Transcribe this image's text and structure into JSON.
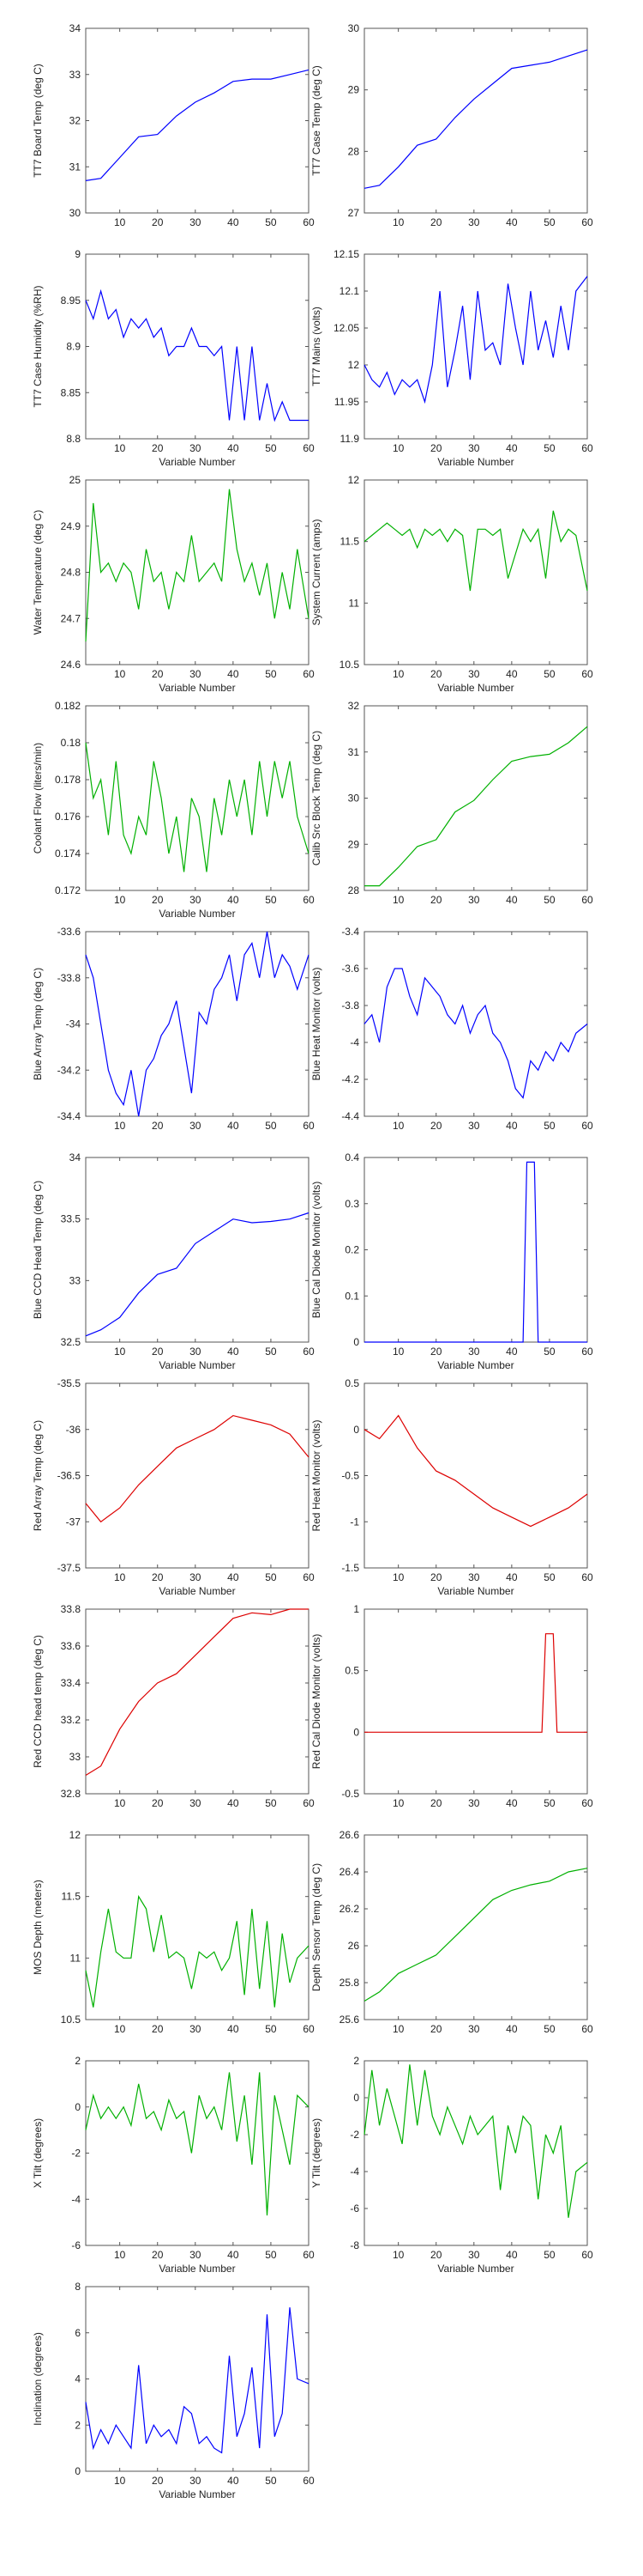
{
  "chart_data": [
    {
      "type": "line",
      "ylabel": "TT7 Board Temp (deg C)",
      "xlabel": "",
      "ylim": [
        30,
        34
      ],
      "yticks": [
        30,
        31,
        32,
        33,
        34
      ],
      "color": "#0000ff",
      "x": [
        1,
        5,
        10,
        15,
        20,
        25,
        30,
        35,
        40,
        45,
        50,
        55,
        60
      ],
      "values": [
        30.7,
        30.75,
        31.2,
        31.65,
        31.7,
        32.1,
        32.4,
        32.6,
        32.85,
        32.9,
        32.9,
        33.0,
        33.1
      ]
    },
    {
      "type": "line",
      "ylabel": "TT7 Case Temp (deg C)",
      "xlabel": "",
      "ylim": [
        27,
        30
      ],
      "yticks": [
        27,
        28,
        29,
        30
      ],
      "color": "#0000ff",
      "x": [
        1,
        5,
        10,
        15,
        20,
        25,
        30,
        35,
        40,
        45,
        50,
        55,
        60
      ],
      "values": [
        27.4,
        27.45,
        27.75,
        28.1,
        28.2,
        28.55,
        28.85,
        29.1,
        29.35,
        29.4,
        29.45,
        29.55,
        29.65
      ]
    },
    {
      "type": "line",
      "ylabel": "TT7 Case Humidity (%RH)",
      "xlabel": "Variable Number",
      "ylim": [
        8.8,
        9.0
      ],
      "yticks": [
        8.8,
        8.85,
        8.9,
        8.95,
        9.0
      ],
      "color": "#0000ff",
      "x": [
        1,
        3,
        5,
        7,
        9,
        11,
        13,
        15,
        17,
        19,
        21,
        23,
        25,
        27,
        29,
        31,
        33,
        35,
        37,
        39,
        41,
        43,
        45,
        47,
        49,
        51,
        53,
        55,
        57,
        60
      ],
      "values": [
        8.95,
        8.93,
        8.96,
        8.93,
        8.94,
        8.91,
        8.93,
        8.92,
        8.93,
        8.91,
        8.92,
        8.89,
        8.9,
        8.9,
        8.92,
        8.9,
        8.9,
        8.89,
        8.9,
        8.82,
        8.9,
        8.82,
        8.9,
        8.82,
        8.86,
        8.82,
        8.84,
        8.82,
        8.82,
        8.82
      ]
    },
    {
      "type": "line",
      "ylabel": "TT7 Mains (volts)",
      "xlabel": "Variable Number",
      "ylim": [
        11.9,
        12.15
      ],
      "yticks": [
        11.9,
        11.95,
        12.0,
        12.05,
        12.1,
        12.15
      ],
      "color": "#0000ff",
      "x": [
        1,
        3,
        5,
        7,
        9,
        11,
        13,
        15,
        17,
        19,
        21,
        23,
        25,
        27,
        29,
        31,
        33,
        35,
        37,
        39,
        41,
        43,
        45,
        47,
        49,
        51,
        53,
        55,
        57,
        60
      ],
      "values": [
        12.0,
        11.98,
        11.97,
        11.99,
        11.96,
        11.98,
        11.97,
        11.98,
        11.95,
        12.0,
        12.1,
        11.97,
        12.02,
        12.08,
        11.98,
        12.1,
        12.02,
        12.03,
        12.0,
        12.11,
        12.05,
        12.0,
        12.1,
        12.02,
        12.06,
        12.01,
        12.08,
        12.02,
        12.1,
        12.12
      ]
    },
    {
      "type": "line",
      "ylabel": "Water Temperature (deg C)",
      "xlabel": "Variable Number",
      "ylim": [
        24.6,
        25.0
      ],
      "yticks": [
        24.6,
        24.7,
        24.8,
        24.9,
        25.0
      ],
      "color": "#00b000",
      "x": [
        1,
        3,
        5,
        7,
        9,
        11,
        13,
        15,
        17,
        19,
        21,
        23,
        25,
        27,
        29,
        31,
        33,
        35,
        37,
        39,
        41,
        43,
        45,
        47,
        49,
        51,
        53,
        55,
        57,
        60
      ],
      "values": [
        24.65,
        24.95,
        24.8,
        24.82,
        24.78,
        24.82,
        24.8,
        24.72,
        24.85,
        24.78,
        24.8,
        24.72,
        24.8,
        24.78,
        24.88,
        24.78,
        24.8,
        24.82,
        24.78,
        24.98,
        24.85,
        24.78,
        24.82,
        24.75,
        24.82,
        24.7,
        24.8,
        24.72,
        24.85,
        24.7
      ]
    },
    {
      "type": "line",
      "ylabel": "System Current (amps)",
      "xlabel": "Variable Number",
      "ylim": [
        10.5,
        12
      ],
      "yticks": [
        10.5,
        11,
        11.5,
        12
      ],
      "color": "#00b000",
      "x": [
        1,
        3,
        5,
        7,
        9,
        11,
        13,
        15,
        17,
        19,
        21,
        23,
        25,
        27,
        29,
        31,
        33,
        35,
        37,
        39,
        41,
        43,
        45,
        47,
        49,
        51,
        53,
        55,
        57,
        60
      ],
      "values": [
        11.5,
        11.55,
        11.6,
        11.65,
        11.6,
        11.55,
        11.6,
        11.45,
        11.6,
        11.55,
        11.6,
        11.5,
        11.6,
        11.55,
        11.1,
        11.6,
        11.6,
        11.55,
        11.6,
        11.2,
        11.4,
        11.6,
        11.5,
        11.6,
        11.2,
        11.75,
        11.5,
        11.6,
        11.55,
        11.1
      ]
    },
    {
      "type": "line",
      "ylabel": "Coolant Flow (liters/min)",
      "xlabel": "Variable Number",
      "ylim": [
        0.172,
        0.182
      ],
      "yticks": [
        0.172,
        0.174,
        0.176,
        0.178,
        0.18,
        0.182
      ],
      "color": "#00b000",
      "x": [
        1,
        3,
        5,
        7,
        9,
        11,
        13,
        15,
        17,
        19,
        21,
        23,
        25,
        27,
        29,
        31,
        33,
        35,
        37,
        39,
        41,
        43,
        45,
        47,
        49,
        51,
        53,
        55,
        57,
        60
      ],
      "values": [
        0.18,
        0.177,
        0.178,
        0.175,
        0.179,
        0.175,
        0.174,
        0.176,
        0.175,
        0.179,
        0.177,
        0.174,
        0.176,
        0.173,
        0.177,
        0.176,
        0.173,
        0.177,
        0.175,
        0.178,
        0.176,
        0.178,
        0.175,
        0.179,
        0.176,
        0.179,
        0.177,
        0.179,
        0.176,
        0.174
      ]
    },
    {
      "type": "line",
      "ylabel": "Calib Src Block Temp (deg C)",
      "xlabel": "",
      "ylim": [
        28,
        32
      ],
      "yticks": [
        28,
        29,
        30,
        31,
        32
      ],
      "color": "#00b000",
      "x": [
        1,
        5,
        10,
        15,
        20,
        25,
        30,
        35,
        40,
        45,
        50,
        55,
        60
      ],
      "values": [
        28.1,
        28.1,
        28.5,
        28.95,
        29.1,
        29.7,
        29.95,
        30.4,
        30.8,
        30.9,
        30.95,
        31.2,
        31.55
      ]
    },
    {
      "type": "line",
      "ylabel": "Blue Array Temp (deg C)",
      "xlabel": "",
      "ylim": [
        -34.4,
        -33.6
      ],
      "yticks": [
        -34.4,
        -34.2,
        -34.0,
        -33.8,
        -33.6
      ],
      "color": "#0000ff",
      "x": [
        1,
        3,
        5,
        7,
        9,
        11,
        13,
        15,
        17,
        19,
        21,
        23,
        25,
        27,
        29,
        31,
        33,
        35,
        37,
        39,
        41,
        43,
        45,
        47,
        49,
        51,
        53,
        55,
        57,
        60
      ],
      "values": [
        -33.7,
        -33.8,
        -34.0,
        -34.2,
        -34.3,
        -34.35,
        -34.2,
        -34.4,
        -34.2,
        -34.15,
        -34.05,
        -34.0,
        -33.9,
        -34.1,
        -34.3,
        -33.95,
        -34.0,
        -33.85,
        -33.8,
        -33.7,
        -33.9,
        -33.7,
        -33.65,
        -33.8,
        -33.6,
        -33.8,
        -33.7,
        -33.75,
        -33.85,
        -33.7
      ]
    },
    {
      "type": "line",
      "ylabel": "Blue Heat Monitor (volts)",
      "xlabel": "",
      "ylim": [
        -4.4,
        -3.4
      ],
      "yticks": [
        -4.4,
        -4.2,
        -4.0,
        -3.8,
        -3.6,
        -3.4
      ],
      "color": "#0000ff",
      "x": [
        1,
        3,
        5,
        7,
        9,
        11,
        13,
        15,
        17,
        19,
        21,
        23,
        25,
        27,
        29,
        31,
        33,
        35,
        37,
        39,
        41,
        43,
        45,
        47,
        49,
        51,
        53,
        55,
        57,
        60
      ],
      "values": [
        -3.9,
        -3.85,
        -4.0,
        -3.7,
        -3.6,
        -3.6,
        -3.75,
        -3.85,
        -3.65,
        -3.7,
        -3.75,
        -3.85,
        -3.9,
        -3.8,
        -3.95,
        -3.85,
        -3.8,
        -3.95,
        -4.0,
        -4.1,
        -4.25,
        -4.3,
        -4.1,
        -4.15,
        -4.05,
        -4.1,
        -4.0,
        -4.05,
        -3.95,
        -3.9
      ]
    },
    {
      "type": "line",
      "ylabel": "Blue CCD Head Temp (deg C)",
      "xlabel": "Variable Number",
      "ylim": [
        32.5,
        34
      ],
      "yticks": [
        32.5,
        33,
        33.5,
        34
      ],
      "color": "#0000ff",
      "x": [
        1,
        5,
        10,
        15,
        20,
        25,
        30,
        35,
        40,
        45,
        50,
        55,
        60
      ],
      "values": [
        32.55,
        32.6,
        32.7,
        32.9,
        33.05,
        33.1,
        33.3,
        33.4,
        33.5,
        33.47,
        33.48,
        33.5,
        33.55
      ]
    },
    {
      "type": "line",
      "ylabel": "Blue Cal Diode Monitor (volts)",
      "xlabel": "Variable Number",
      "ylim": [
        0,
        0.4
      ],
      "yticks": [
        0,
        0.1,
        0.2,
        0.3,
        0.4
      ],
      "color": "#0000ff",
      "x": [
        1,
        43,
        44,
        46,
        47,
        60
      ],
      "values": [
        0.0,
        0.0,
        0.39,
        0.39,
        0.0,
        0.0
      ]
    },
    {
      "type": "line",
      "ylabel": "Red Array Temp (deg C)",
      "xlabel": "Variable Number",
      "ylim": [
        -37.5,
        -35.5
      ],
      "yticks": [
        -37.5,
        -37,
        -36.5,
        -36,
        -35.5
      ],
      "color": "#dd0000",
      "x": [
        1,
        5,
        10,
        15,
        20,
        25,
        30,
        35,
        40,
        45,
        50,
        55,
        60
      ],
      "values": [
        -36.8,
        -37.0,
        -36.85,
        -36.6,
        -36.4,
        -36.2,
        -36.1,
        -36.0,
        -35.85,
        -35.9,
        -35.95,
        -36.05,
        -36.3
      ]
    },
    {
      "type": "line",
      "ylabel": "Red Heat Monitor (volts)",
      "xlabel": "Variable Number",
      "ylim": [
        -1.5,
        0.5
      ],
      "yticks": [
        -1.5,
        -1,
        -0.5,
        0,
        0.5
      ],
      "color": "#dd0000",
      "x": [
        1,
        5,
        10,
        15,
        20,
        25,
        30,
        35,
        40,
        45,
        50,
        55,
        60
      ],
      "values": [
        0.0,
        -0.1,
        0.15,
        -0.2,
        -0.45,
        -0.55,
        -0.7,
        -0.85,
        -0.95,
        -1.05,
        -0.95,
        -0.85,
        -0.7
      ]
    },
    {
      "type": "line",
      "ylabel": "Red CCD head temp (deg C)",
      "xlabel": "",
      "ylim": [
        32.8,
        33.8
      ],
      "yticks": [
        32.8,
        33,
        33.2,
        33.4,
        33.6,
        33.8
      ],
      "color": "#dd0000",
      "x": [
        1,
        5,
        10,
        15,
        20,
        25,
        30,
        35,
        40,
        45,
        50,
        55,
        60
      ],
      "values": [
        32.9,
        32.95,
        33.15,
        33.3,
        33.4,
        33.45,
        33.55,
        33.65,
        33.75,
        33.78,
        33.77,
        33.8,
        33.8
      ]
    },
    {
      "type": "line",
      "ylabel": "Red Cal Diode Monitor (volts)",
      "xlabel": "",
      "ylim": [
        -0.5,
        1
      ],
      "yticks": [
        -0.5,
        0,
        0.5,
        1
      ],
      "color": "#dd0000",
      "x": [
        1,
        48,
        49,
        51,
        52,
        60
      ],
      "values": [
        0.0,
        0.0,
        0.8,
        0.8,
        0.0,
        0.0
      ]
    },
    {
      "type": "line",
      "ylabel": "MOS Depth  (meters)",
      "xlabel": "",
      "ylim": [
        10.5,
        12
      ],
      "yticks": [
        10.5,
        11,
        11.5,
        12
      ],
      "color": "#00b000",
      "x": [
        1,
        3,
        5,
        7,
        9,
        11,
        13,
        15,
        17,
        19,
        21,
        23,
        25,
        27,
        29,
        31,
        33,
        35,
        37,
        39,
        41,
        43,
        45,
        47,
        49,
        51,
        53,
        55,
        57,
        60
      ],
      "values": [
        10.9,
        10.6,
        11.05,
        11.4,
        11.05,
        11.0,
        11.0,
        11.5,
        11.4,
        11.05,
        11.35,
        11.0,
        11.05,
        11.0,
        10.75,
        11.05,
        11.0,
        11.05,
        10.9,
        11.0,
        11.3,
        10.7,
        11.4,
        10.75,
        11.3,
        10.6,
        11.2,
        10.8,
        11.0,
        11.1
      ]
    },
    {
      "type": "line",
      "ylabel": "Depth Sensor Temp (deg C)",
      "xlabel": "",
      "ylim": [
        25.6,
        26.6
      ],
      "yticks": [
        25.6,
        25.8,
        26,
        26.2,
        26.4,
        26.6
      ],
      "color": "#00b000",
      "x": [
        1,
        5,
        10,
        15,
        20,
        25,
        30,
        35,
        40,
        45,
        50,
        55,
        60
      ],
      "values": [
        25.7,
        25.75,
        25.85,
        25.9,
        25.95,
        26.05,
        26.15,
        26.25,
        26.3,
        26.33,
        26.35,
        26.4,
        26.42
      ]
    },
    {
      "type": "line",
      "ylabel": "X Tilt  (degrees)",
      "xlabel": "Variable Number",
      "ylim": [
        -6,
        2
      ],
      "yticks": [
        -6,
        -4,
        -2,
        0,
        2
      ],
      "color": "#00b000",
      "x": [
        1,
        3,
        5,
        7,
        9,
        11,
        13,
        15,
        17,
        19,
        21,
        23,
        25,
        27,
        29,
        31,
        33,
        35,
        37,
        39,
        41,
        43,
        45,
        47,
        49,
        51,
        53,
        55,
        57,
        60
      ],
      "values": [
        -1.0,
        0.5,
        -0.5,
        0.0,
        -0.5,
        0.0,
        -0.8,
        1.0,
        -0.5,
        -0.2,
        -1.0,
        0.3,
        -0.5,
        -0.2,
        -2.0,
        0.5,
        -0.5,
        0.0,
        -1.0,
        1.5,
        -1.5,
        0.5,
        -2.5,
        1.5,
        -4.7,
        0.5,
        -1.0,
        -2.5,
        0.5,
        0.0
      ]
    },
    {
      "type": "line",
      "ylabel": "Y Tilt  (degrees)",
      "xlabel": "Variable Number",
      "ylim": [
        -8,
        2
      ],
      "yticks": [
        -8,
        -6,
        -4,
        -2,
        0,
        2
      ],
      "color": "#00b000",
      "x": [
        1,
        3,
        5,
        7,
        9,
        11,
        13,
        15,
        17,
        19,
        21,
        23,
        25,
        27,
        29,
        31,
        33,
        35,
        37,
        39,
        41,
        43,
        45,
        47,
        49,
        51,
        53,
        55,
        57,
        60
      ],
      "values": [
        -2.0,
        1.5,
        -1.5,
        0.5,
        -1.0,
        -2.5,
        1.8,
        -1.5,
        1.5,
        -1.0,
        -2.0,
        -0.5,
        -1.5,
        -2.5,
        -1.0,
        -2.0,
        -1.5,
        -1.0,
        -5.0,
        -1.5,
        -3.0,
        -1.0,
        -1.5,
        -5.5,
        -2.0,
        -3.0,
        -1.5,
        -6.5,
        -4.0,
        -3.5
      ]
    },
    {
      "type": "line",
      "ylabel": "Inclination  (degrees)",
      "xlabel": "Variable Number",
      "ylim": [
        0,
        8
      ],
      "yticks": [
        0,
        2,
        4,
        6,
        8
      ],
      "color": "#0000ff",
      "x": [
        1,
        3,
        5,
        7,
        9,
        11,
        13,
        15,
        17,
        19,
        21,
        23,
        25,
        27,
        29,
        31,
        33,
        35,
        37,
        39,
        41,
        43,
        45,
        47,
        49,
        51,
        53,
        55,
        57,
        60
      ],
      "values": [
        3.0,
        1.0,
        1.8,
        1.2,
        2.0,
        1.5,
        1.0,
        4.6,
        1.2,
        2.0,
        1.5,
        1.8,
        1.2,
        2.8,
        2.5,
        1.2,
        1.5,
        1.0,
        0.8,
        5.0,
        1.5,
        2.5,
        4.5,
        1.0,
        6.8,
        1.5,
        2.5,
        7.1,
        4.0,
        3.8
      ]
    }
  ],
  "xaxis": {
    "xlim": [
      1,
      60
    ],
    "xticks": [
      10,
      20,
      30,
      40,
      50,
      60
    ]
  }
}
